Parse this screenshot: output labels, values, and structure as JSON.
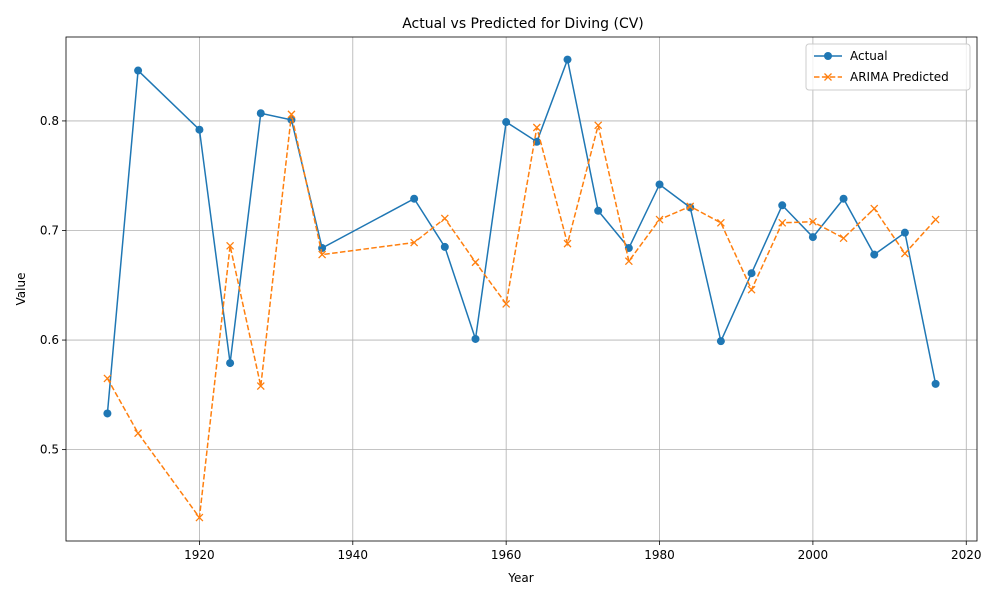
{
  "chart_data": {
    "type": "line",
    "title": "Actual vs Predicted for Diving (CV)",
    "xlabel": "Year",
    "ylabel": "Value",
    "xlim": [
      1902.6,
      2021.4
    ],
    "ylim": [
      0.4166,
      0.8766
    ],
    "xticks": [
      1920,
      1940,
      1960,
      1980,
      2000,
      2020
    ],
    "yticks": [
      0.5,
      0.6,
      0.7,
      0.8
    ],
    "grid": true,
    "legend": "top-right",
    "x": [
      1908,
      1912,
      1920,
      1924,
      1928,
      1932,
      1936,
      1948,
      1952,
      1956,
      1960,
      1964,
      1968,
      1972,
      1976,
      1980,
      1984,
      1988,
      1992,
      1996,
      2000,
      2004,
      2008,
      2012,
      2016
    ],
    "series": [
      {
        "name": "Actual",
        "style": "solid",
        "marker": "circle",
        "color": "#1f77b4",
        "values": [
          0.533,
          0.846,
          0.792,
          0.579,
          0.807,
          0.801,
          0.684,
          0.729,
          0.685,
          0.601,
          0.799,
          0.781,
          0.856,
          0.718,
          0.684,
          0.742,
          0.721,
          0.599,
          0.661,
          0.723,
          0.694,
          0.729,
          0.678,
          0.698,
          0.56
        ]
      },
      {
        "name": "ARIMA Predicted",
        "style": "dashed",
        "marker": "x",
        "color": "#ff7f0e",
        "values": [
          0.565,
          0.515,
          0.438,
          0.686,
          0.558,
          0.806,
          0.678,
          0.689,
          0.711,
          0.671,
          0.633,
          0.794,
          0.688,
          0.796,
          0.672,
          0.71,
          0.722,
          0.707,
          0.646,
          0.707,
          0.708,
          0.693,
          0.72,
          0.679,
          0.71
        ]
      }
    ]
  }
}
